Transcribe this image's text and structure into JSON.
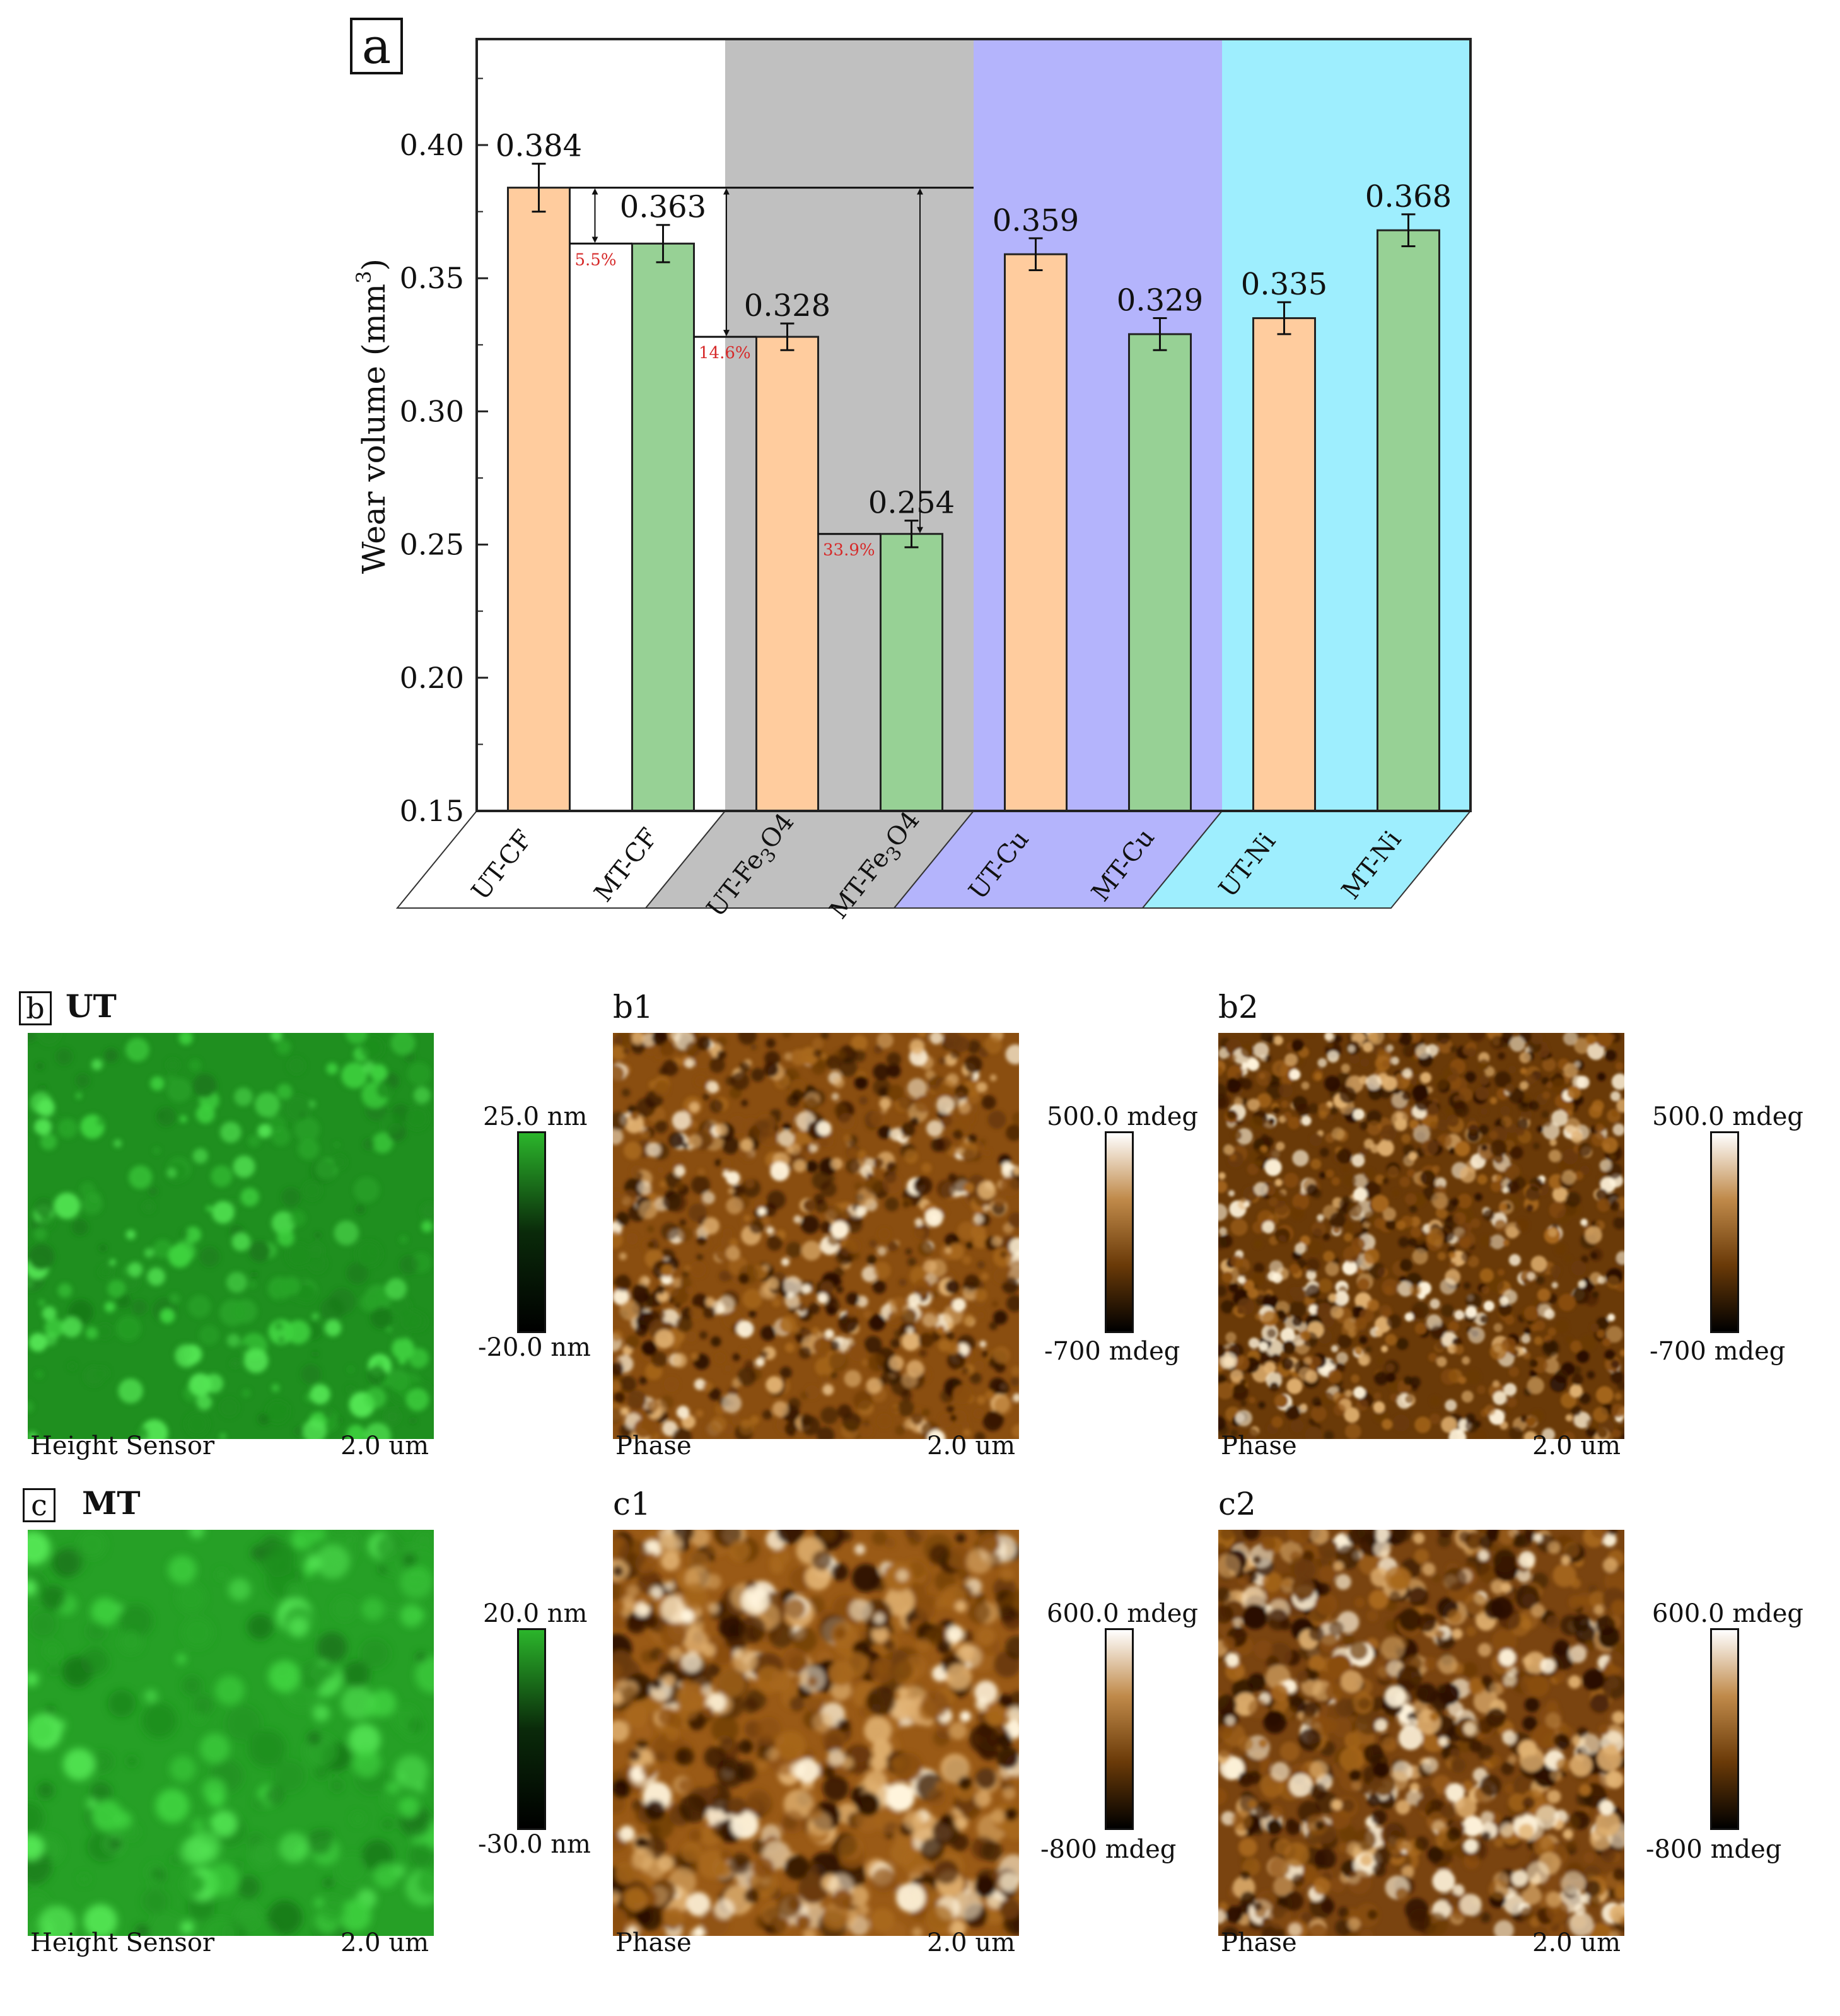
{
  "colors": {
    "orange_bar": "#ffcc9e",
    "green_bar": "#97d195",
    "band_white": "#ffffff",
    "band_gray": "#c0c0c0",
    "band_purple": "#b4b4fc",
    "band_cyan": "#9eeefe",
    "pct_red": "#d62a2a",
    "afm_green": "#2bb52b",
    "afm_brown": "#8a4e10"
  },
  "chart_data": {
    "type": "bar",
    "panel_label": "a",
    "ylabel_prefix": "Wear volume (mm",
    "ylabel_sup": "3",
    "ylabel_suffix": ")",
    "ylim": [
      0.15,
      0.44
    ],
    "yticks": [
      "0.15",
      "0.20",
      "0.25",
      "0.30",
      "0.35",
      "0.40"
    ],
    "categories": [
      {
        "label": "UT-CF",
        "base": "UT-CF",
        "sub": "",
        "tail": "",
        "value": 0.384,
        "err": 0.009,
        "display": "0.384",
        "color": "#ffcc9e"
      },
      {
        "label": "MT-CF",
        "base": "MT-CF",
        "sub": "",
        "tail": "",
        "value": 0.363,
        "err": 0.007,
        "display": "0.363",
        "color": "#97d195"
      },
      {
        "label": "UT-Fe3O4",
        "base": "UT-Fe",
        "sub": "3",
        "tail": "O4",
        "value": 0.328,
        "err": 0.005,
        "display": "0.328",
        "color": "#ffcc9e"
      },
      {
        "label": "MT-Fe3O4",
        "base": "MT-Fe",
        "sub": "3",
        "tail": "O4",
        "value": 0.254,
        "err": 0.005,
        "display": "0.254",
        "color": "#97d195"
      },
      {
        "label": "UT-Cu",
        "base": "UT-Cu",
        "sub": "",
        "tail": "",
        "value": 0.359,
        "err": 0.006,
        "display": "0.359",
        "color": "#ffcc9e"
      },
      {
        "label": "MT-Cu",
        "base": "MT-Cu",
        "sub": "",
        "tail": "",
        "value": 0.329,
        "err": 0.006,
        "display": "0.329",
        "color": "#97d195"
      },
      {
        "label": "UT-Ni",
        "base": "UT-Ni",
        "sub": "",
        "tail": "",
        "value": 0.335,
        "err": 0.006,
        "display": "0.335",
        "color": "#ffcc9e"
      },
      {
        "label": "MT-Ni",
        "base": "MT-Ni",
        "sub": "",
        "tail": "",
        "value": 0.368,
        "err": 0.006,
        "display": "0.368",
        "color": "#97d195"
      }
    ],
    "reductions": [
      {
        "from": "UT-CF",
        "to": "MT-CF",
        "text": "5.5%"
      },
      {
        "from": "UT-CF",
        "to": "UT-Fe3O4",
        "text": "14.6%"
      },
      {
        "from": "UT-CF",
        "to": "MT-Fe3O4",
        "text": "33.9%"
      }
    ]
  },
  "afm": {
    "row_b": {
      "tag": "b",
      "title": "UT",
      "height_panel": {
        "caption": "Height Sensor",
        "scale": "2.0 um",
        "cbar_max": "25.0 nm",
        "cbar_min": "-20.0 nm"
      },
      "phase1": {
        "tag": "b1",
        "caption": "Phase",
        "scale": "2.0 um",
        "cbar_max": "500.0 mdeg",
        "cbar_min": "-700 mdeg"
      },
      "phase2": {
        "tag": "b2",
        "caption": "Phase",
        "scale": "2.0 um",
        "cbar_max": "500.0 mdeg",
        "cbar_min": "-700 mdeg"
      }
    },
    "row_c": {
      "tag": "c",
      "title": "MT",
      "height_panel": {
        "caption": "Height Sensor",
        "scale": "2.0 um",
        "cbar_max": "20.0 nm",
        "cbar_min": "-30.0 nm"
      },
      "phase1": {
        "tag": "c1",
        "caption": "Phase",
        "scale": "2.0 um",
        "cbar_max": "600.0 mdeg",
        "cbar_min": "-800 mdeg"
      },
      "phase2": {
        "tag": "c2",
        "caption": "Phase",
        "scale": "2.0 um",
        "cbar_max": "600.0 mdeg",
        "cbar_min": "-800 mdeg"
      }
    }
  }
}
